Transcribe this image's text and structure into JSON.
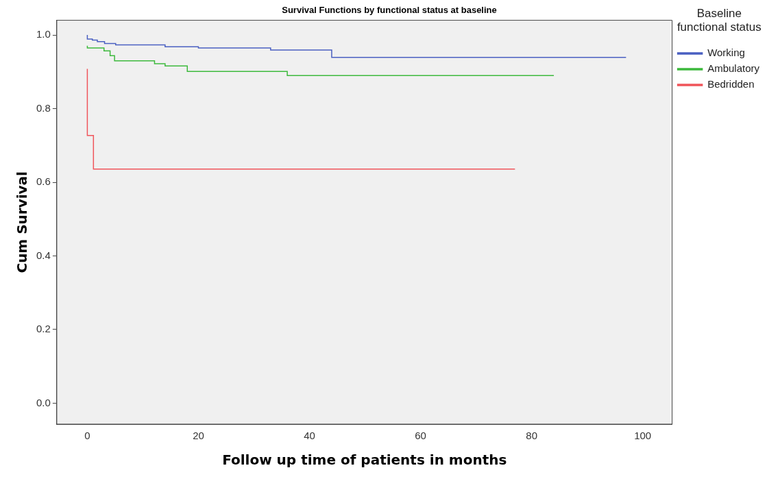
{
  "chart_data": {
    "type": "step",
    "title": "Survival Functions by functional status at baseline",
    "xlabel": "Follow up time of patients in months",
    "ylabel": "Cum Survival",
    "legend_title": "Baseline functional status",
    "legend": "right",
    "series": [
      {
        "name": "Working",
        "color": "#4a5fc1",
        "x": [
          0,
          0.9,
          1.8,
          3.1,
          5.1,
          14,
          20,
          33,
          44,
          70,
          97
        ],
        "values": [
          1.0,
          0.989,
          0.986,
          0.982,
          0.977,
          0.973,
          0.968,
          0.965,
          0.959,
          0.939,
          0.939
        ]
      },
      {
        "name": "Ambulatory",
        "color": "#3cb93c",
        "x": [
          0,
          3,
          4.1,
          4.9,
          12.1,
          14,
          18,
          36,
          50,
          84
        ],
        "values": [
          0.971,
          0.965,
          0.957,
          0.944,
          0.93,
          0.922,
          0.916,
          0.901,
          0.89,
          0.89
        ]
      },
      {
        "name": "Bedridden",
        "color": "#f0545a",
        "x": [
          0,
          1.1,
          2,
          77
        ],
        "values": [
          0.908,
          0.727,
          0.636,
          0.636
        ]
      }
    ],
    "xlim": [
      -5.5,
      105.3
    ],
    "xticks": [
      0,
      20,
      40,
      60,
      80,
      100
    ],
    "ylim": [
      -0.057,
      1.04
    ],
    "yticks": [
      {
        "value": 0,
        "label": "0.0"
      },
      {
        "value": 0.2,
        "label": "0.2"
      },
      {
        "value": 0.4,
        "label": "0.4"
      },
      {
        "value": 0.6,
        "label": "0.6"
      },
      {
        "value": 0.8,
        "label": "0.8"
      },
      {
        "value": 1,
        "label": "1.0"
      }
    ],
    "grid": false,
    "marker": "none",
    "line_style": "solid"
  }
}
